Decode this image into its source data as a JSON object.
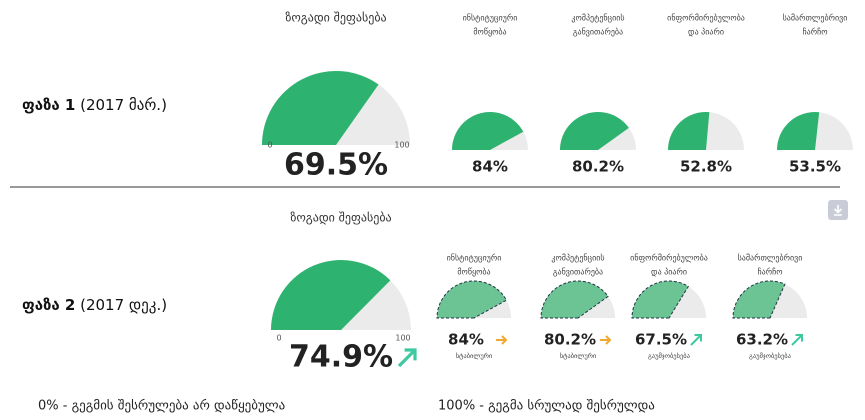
{
  "phases": [
    {
      "label": "ფაზა 1",
      "period": "(2017 მარ.)",
      "overall": {
        "title": "ზოგადი შეფასება",
        "value": 69.5,
        "value_label": "69.5%",
        "ticks": [
          0,
          100
        ]
      },
      "components": [
        {
          "name": [
            "ინსტიტუციური",
            "მოწყობა"
          ],
          "value": 84,
          "value_label": "84%"
        },
        {
          "name": [
            "კომპეტენციის",
            "განვითარება"
          ],
          "value": 80.2,
          "value_label": "80.2%"
        },
        {
          "name": [
            "ინფორმირებულობა",
            "და პიარი"
          ],
          "value": 52.8,
          "value_label": "52.8%"
        },
        {
          "name": [
            "სამართლებრივი",
            "ჩარჩო"
          ],
          "value": 53.5,
          "value_label": "53.5%"
        }
      ]
    },
    {
      "label": "ფაზა 2",
      "period": "(2017 დეკ.)",
      "overall": {
        "title": "ზოგადი შეფასება",
        "value": 74.9,
        "value_label": "74.9%",
        "ticks": [
          0,
          100
        ],
        "trend": "up"
      },
      "components": [
        {
          "name": [
            "ინსტიტუციური",
            "მოწყობა"
          ],
          "value": 84,
          "value_label": "84%",
          "trend": "flat",
          "status": "სტაბილური"
        },
        {
          "name": [
            "კომპეტენციის",
            "განვითარება"
          ],
          "value": 80.2,
          "value_label": "80.2%",
          "trend": "flat",
          "status": "სტაბილური"
        },
        {
          "name": [
            "ინფორმირებულობა",
            "და პიარი"
          ],
          "value": 67.5,
          "value_label": "67.5%",
          "trend": "up",
          "status": "გაუმჯობესება"
        },
        {
          "name": [
            "სამართლებრივი",
            "ჩარჩო"
          ],
          "value": 63.2,
          "value_label": "63.2%",
          "trend": "up",
          "status": "გაუმჯობესება"
        }
      ]
    }
  ],
  "legend": [
    "0% - გეგმის შესრულება არ დაწყებულა",
    "100% - გეგმა სრულად შესრულდა"
  ]
}
